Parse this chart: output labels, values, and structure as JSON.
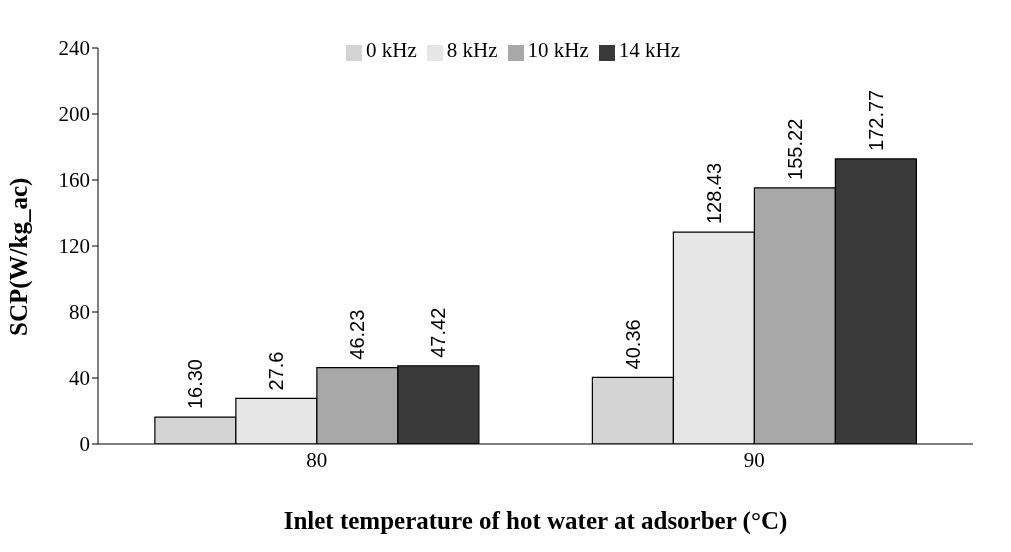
{
  "chart_data": {
    "type": "bar",
    "xlabel": "Inlet temperature of hot water at adsorber (°C)",
    "ylabel": "SCP(W/kg_ac)",
    "categories": [
      "80",
      "90"
    ],
    "series": [
      {
        "name": "0 kHz",
        "color": "#d4d4d4",
        "values": [
          16.3,
          40.36
        ],
        "value_labels": [
          "16.30",
          "40.36"
        ]
      },
      {
        "name": "8 kHz",
        "color": "#e6e6e6",
        "values": [
          27.6,
          128.43
        ],
        "value_labels": [
          "27.6",
          "128.43"
        ]
      },
      {
        "name": "10 kHz",
        "color": "#a8a8a8",
        "values": [
          46.23,
          155.22
        ],
        "value_labels": [
          "46.23",
          "155.22"
        ]
      },
      {
        "name": "14 kHz",
        "color": "#3a3a3a",
        "values": [
          47.42,
          172.77
        ],
        "value_labels": [
          "47.42",
          "172.77"
        ]
      }
    ],
    "ylim": [
      0,
      240
    ],
    "yticks": [
      0,
      40,
      80,
      120,
      160,
      200,
      240
    ],
    "legend": "top"
  }
}
